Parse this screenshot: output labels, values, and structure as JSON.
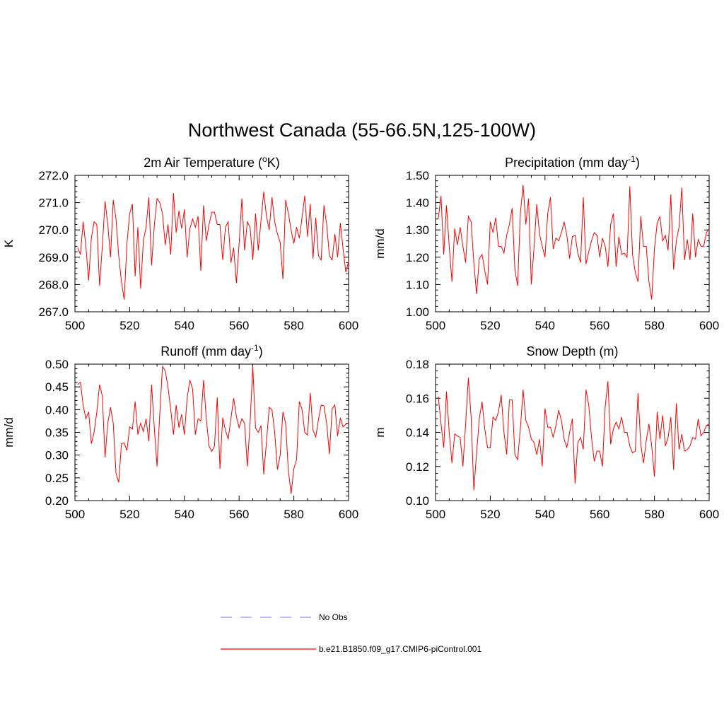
{
  "main_title": "Northwest Canada (55-66.5N,125-100W)",
  "legend": {
    "obs_label": "No Obs",
    "model_label": "b.e21.B1850.f09_g17.CMIP6-piControl.001",
    "obs_color": "#9999ff",
    "model_color": "#ff0000"
  },
  "chart_data": [
    {
      "type": "line",
      "title": "2m Air Temperature (°K)",
      "title_parts": {
        "pre": "2m Air Temperature (",
        "sup": "o",
        "post": "K)"
      },
      "ylabel": "K",
      "xlim": [
        500,
        600
      ],
      "ylim": [
        267.0,
        272.0
      ],
      "yticks": [
        "267.0",
        "268.0",
        "269.0",
        "270.0",
        "271.0",
        "272.0"
      ],
      "xticks": [
        "500",
        "520",
        "540",
        "560",
        "580",
        "600"
      ],
      "color": "#ff0000",
      "x_start": 501,
      "values": [
        269.35,
        269.1,
        270.3,
        269.4,
        268.15,
        269.7,
        270.3,
        270.2,
        267.95,
        269.4,
        271.05,
        270.2,
        269.0,
        271.1,
        270.4,
        269.05,
        268.1,
        267.45,
        269.5,
        270.6,
        270.95,
        268.3,
        270.1,
        267.85,
        269.6,
        270.1,
        271.2,
        268.7,
        270.15,
        271.15,
        271.0,
        270.6,
        269.45,
        270.2,
        269.1,
        271.35,
        269.9,
        270.7,
        270.05,
        270.75,
        269.0,
        270.05,
        270.4,
        270.1,
        270.5,
        268.5,
        270.9,
        269.6,
        270.2,
        270.65,
        270.65,
        270.2,
        270.2,
        268.9,
        270.1,
        270.3,
        268.8,
        269.35,
        268.05,
        269.5,
        271.15,
        269.25,
        270.3,
        270.1,
        268.9,
        270.6,
        269.25,
        270.35,
        271.4,
        270.5,
        270.0,
        271.2,
        270.3,
        269.85,
        269.55,
        268.2,
        271.1,
        270.6,
        270.0,
        269.5,
        270.1,
        269.7,
        270.45,
        271.25,
        269.75,
        270.95,
        268.95,
        270.45,
        269.05,
        268.9,
        270.9,
        270.2,
        269.05,
        268.9,
        269.85,
        269.0,
        270.25,
        269.3,
        268.45,
        268.85
      ]
    },
    {
      "type": "line",
      "title": "Precipitation (mm day-1)",
      "title_parts": {
        "pre": "Precipitation (mm day",
        "sup": "-1",
        "post": ")"
      },
      "ylabel": "mm/d",
      "xlim": [
        500,
        600
      ],
      "ylim": [
        1.0,
        1.5
      ],
      "yticks": [
        "1.00",
        "1.10",
        "1.20",
        "1.30",
        "1.40",
        "1.50"
      ],
      "xticks": [
        "500",
        "520",
        "540",
        "560",
        "580",
        "600"
      ],
      "color": "#ff0000",
      "x_start": 501,
      "values": [
        1.34,
        1.425,
        1.21,
        1.39,
        1.24,
        1.11,
        1.305,
        1.245,
        1.31,
        1.24,
        1.18,
        1.35,
        1.33,
        1.18,
        1.065,
        1.195,
        1.21,
        1.15,
        1.1,
        1.33,
        1.29,
        1.345,
        1.24,
        1.24,
        1.215,
        1.28,
        1.32,
        1.38,
        1.155,
        1.095,
        1.36,
        1.465,
        1.32,
        1.415,
        1.1,
        1.235,
        1.395,
        1.285,
        1.24,
        1.2,
        1.36,
        1.42,
        1.23,
        1.27,
        1.26,
        1.29,
        1.33,
        1.28,
        1.195,
        1.275,
        1.28,
        1.215,
        1.18,
        1.42,
        1.175,
        1.22,
        1.26,
        1.29,
        1.28,
        1.2,
        1.27,
        1.24,
        1.165,
        1.32,
        1.36,
        1.165,
        1.275,
        1.21,
        1.215,
        1.2,
        1.46,
        1.21,
        1.145,
        1.11,
        1.35,
        1.24,
        1.24,
        1.11,
        1.045,
        1.23,
        1.325,
        1.35,
        1.26,
        1.28,
        1.225,
        1.43,
        1.155,
        1.26,
        1.31,
        1.455,
        1.19,
        1.265,
        1.19,
        1.36,
        1.2,
        1.265,
        1.24,
        1.24,
        1.29,
        1.305
      ]
    },
    {
      "type": "line",
      "title": "Runoff (mm day-1)",
      "title_parts": {
        "pre": "Runoff (mm day",
        "sup": "-1",
        "post": ")"
      },
      "ylabel": "mm/d",
      "xlim": [
        500,
        600
      ],
      "ylim": [
        0.2,
        0.5
      ],
      "yticks": [
        "0.20",
        "0.25",
        "0.30",
        "0.35",
        "0.40",
        "0.45",
        "0.50"
      ],
      "xticks": [
        "500",
        "520",
        "540",
        "560",
        "580",
        "600"
      ],
      "color": "#ff0000",
      "x_start": 501,
      "values": [
        0.455,
        0.46,
        0.41,
        0.38,
        0.395,
        0.325,
        0.35,
        0.395,
        0.455,
        0.43,
        0.295,
        0.37,
        0.405,
        0.37,
        0.26,
        0.24,
        0.325,
        0.327,
        0.31,
        0.362,
        0.357,
        0.418,
        0.345,
        0.37,
        0.352,
        0.38,
        0.33,
        0.455,
        0.36,
        0.275,
        0.39,
        0.495,
        0.485,
        0.45,
        0.4,
        0.345,
        0.41,
        0.36,
        0.39,
        0.345,
        0.425,
        0.465,
        0.445,
        0.345,
        0.38,
        0.375,
        0.465,
        0.38,
        0.32,
        0.308,
        0.32,
        0.427,
        0.27,
        0.382,
        0.355,
        0.335,
        0.38,
        0.425,
        0.385,
        0.36,
        0.38,
        0.37,
        0.275,
        0.37,
        0.495,
        0.36,
        0.35,
        0.365,
        0.258,
        0.33,
        0.405,
        0.4,
        0.35,
        0.268,
        0.3,
        0.395,
        0.37,
        0.265,
        0.215,
        0.27,
        0.29,
        0.418,
        0.4,
        0.35,
        0.344,
        0.437,
        0.355,
        0.34,
        0.378,
        0.41,
        0.408,
        0.37,
        0.302,
        0.402,
        0.41,
        0.342,
        0.382,
        0.362,
        0.368,
        0.37
      ]
    },
    {
      "type": "line",
      "title": "Snow Depth (m)",
      "ylabel": "m",
      "xlim": [
        500,
        600
      ],
      "ylim": [
        0.1,
        0.18
      ],
      "yticks": [
        "0.10",
        "0.12",
        "0.14",
        "0.16",
        "0.18"
      ],
      "xticks": [
        "500",
        "520",
        "540",
        "560",
        "580",
        "600"
      ],
      "color": "#ff0000",
      "x_start": 501,
      "values": [
        0.161,
        0.145,
        0.131,
        0.164,
        0.14,
        0.122,
        0.139,
        0.138,
        0.137,
        0.12,
        0.145,
        0.172,
        0.149,
        0.106,
        0.128,
        0.148,
        0.158,
        0.142,
        0.131,
        0.131,
        0.149,
        0.147,
        0.152,
        0.162,
        0.14,
        0.127,
        0.159,
        0.159,
        0.127,
        0.124,
        0.142,
        0.165,
        0.147,
        0.143,
        0.136,
        0.134,
        0.127,
        0.136,
        0.12,
        0.154,
        0.143,
        0.143,
        0.137,
        0.144,
        0.153,
        0.147,
        0.136,
        0.131,
        0.14,
        0.148,
        0.11,
        0.134,
        0.137,
        0.13,
        0.165,
        0.156,
        0.137,
        0.123,
        0.129,
        0.129,
        0.12,
        0.155,
        0.17,
        0.133,
        0.142,
        0.146,
        0.142,
        0.149,
        0.14,
        0.14,
        0.132,
        0.128,
        0.129,
        0.163,
        0.133,
        0.122,
        0.135,
        0.145,
        0.132,
        0.114,
        0.152,
        0.136,
        0.15,
        0.132,
        0.137,
        0.149,
        0.118,
        0.157,
        0.13,
        0.139,
        0.129,
        0.13,
        0.132,
        0.137,
        0.136,
        0.148,
        0.138,
        0.14,
        0.144,
        0.145
      ]
    }
  ]
}
